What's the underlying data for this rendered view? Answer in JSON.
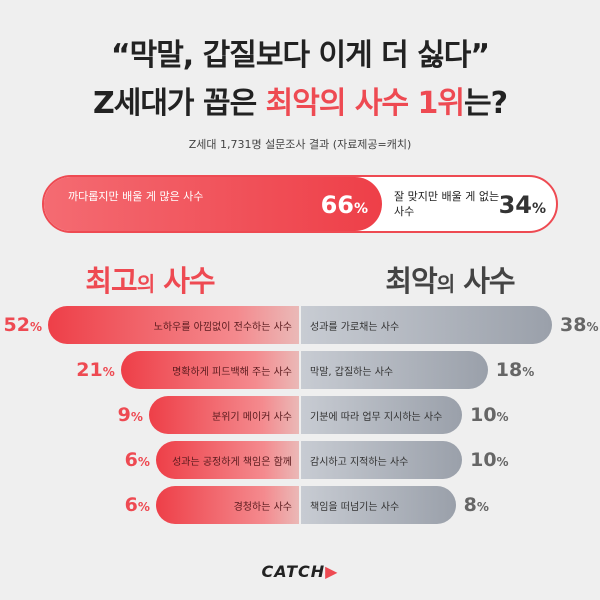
{
  "header": {
    "title_line1": "“막말, 갑질보다 이게 더 싫다”",
    "title_line2_prefix": "Z세대가 꼽은 ",
    "title_line2_highlight": "최악의 사수 1위",
    "title_line2_suffix": "는?",
    "subtitle": "Z세대 1,731명 설문조사 결과 (자료제공=캐치)"
  },
  "split": {
    "left_label": "까다롭지만 배울 게 많은 사수",
    "left_value": 66,
    "right_label": "잘 맞지만 배울 게 없는 사수",
    "right_value": 34,
    "unit": "%"
  },
  "sections": {
    "best_main": "최고",
    "best_particle": "의",
    "best_tail": " 사수",
    "worst_main": "최악",
    "worst_particle": "의",
    "worst_tail": " 사수"
  },
  "chart_data": {
    "type": "bar",
    "unit": "%",
    "series": [
      {
        "name": "최고의 사수",
        "categories": [
          "노하우를 아낌없이 전수하는 사수",
          "명확하게 피드백해 주는 사수",
          "분위기 메이커 사수",
          "성과는 공정하게 책임은 함께",
          "경청하는 사수"
        ],
        "values": [
          52,
          21,
          9,
          6,
          6
        ]
      },
      {
        "name": "최악의 사수",
        "categories": [
          "성과를 가로채는 사수",
          "막말, 갑질하는 사수",
          "기분에 따라 업무 지시하는 사수",
          "감시하고 지적하는 사수",
          "책임을 떠넘기는 사수"
        ],
        "values": [
          38,
          18,
          10,
          10,
          8
        ]
      }
    ],
    "colors": {
      "best": "#ee4a52",
      "worst": "#9aa0aa"
    }
  },
  "footer": {
    "logo": "CATCH",
    "logo_mark": "▶"
  }
}
